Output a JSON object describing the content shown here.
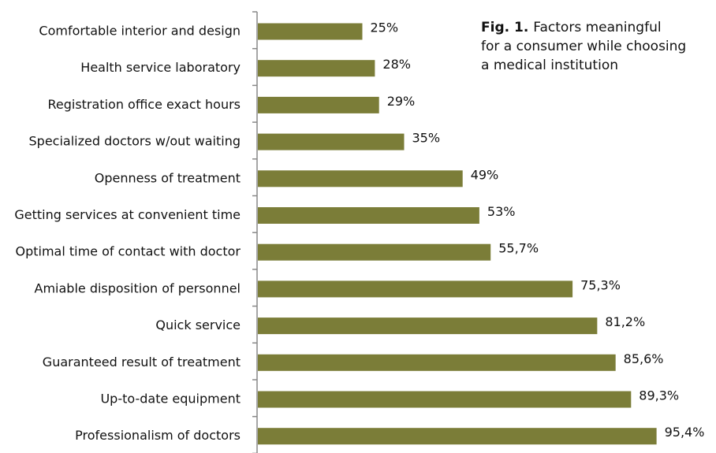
{
  "chart_data": {
    "type": "bar",
    "orientation": "horizontal",
    "figure_label": "Fig. 1.",
    "title": "Factors meaningful for a consumer while choosing a medical institution",
    "categories": [
      "Comfortable interior and design",
      "Health service laboratory",
      "Registration office exact hours",
      "Specialized doctors w/out waiting",
      "Openness of treatment",
      "Getting services at convenient time",
      "Optimal time of contact with doctor",
      "Amiable disposition of personnel",
      "Quick service",
      "Guaranteed result of treatment",
      "Up-to-date equipment",
      "Professionalism of doctors"
    ],
    "values": [
      25,
      28,
      29,
      35,
      49,
      53,
      55.7,
      75.3,
      81.2,
      85.6,
      89.3,
      95.4
    ],
    "value_labels": [
      "25%",
      "28%",
      "29%",
      "35%",
      "49%",
      "53%",
      "55,7%",
      "75,3%",
      "81,2%",
      "85,6%",
      "89,3%",
      "95,4%"
    ],
    "color": "#7b7d38"
  }
}
